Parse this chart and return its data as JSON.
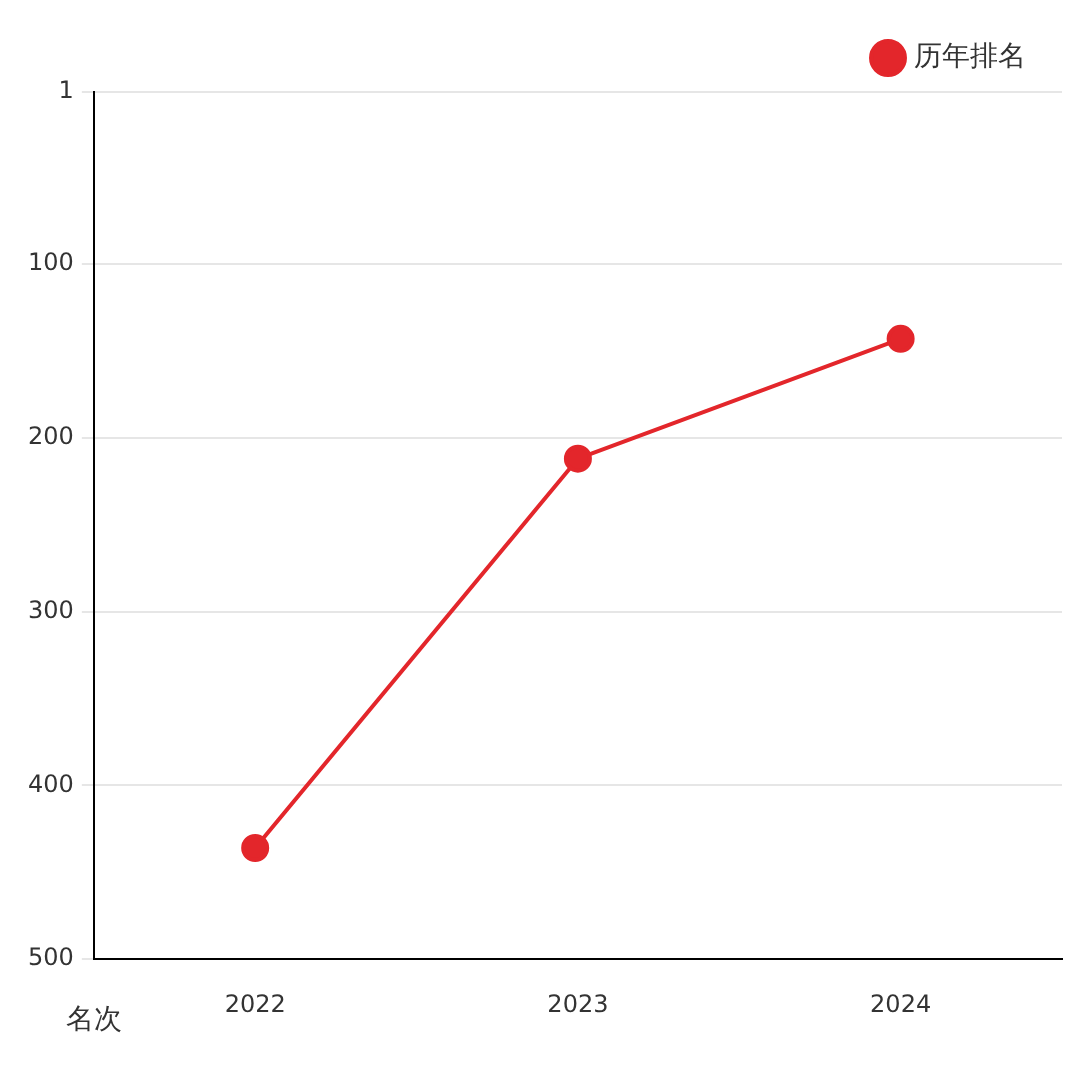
{
  "chart_data": {
    "type": "line",
    "ylabel": "名次",
    "categories": [
      "2022",
      "2023",
      "2024"
    ],
    "series": [
      {
        "name": "历年排名",
        "color": "#e3262b",
        "values": [
          436,
          212,
          143
        ]
      }
    ],
    "ylim": [
      500,
      1
    ],
    "yticks": [
      1,
      100,
      200,
      300,
      400,
      500
    ],
    "grid": "y",
    "legend": "top right",
    "marker": "circle",
    "line_style": "solid"
  }
}
